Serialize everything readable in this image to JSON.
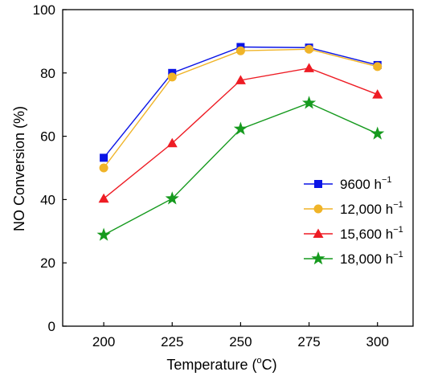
{
  "chart_data": {
    "type": "line",
    "xlabel": "Temperature (",
    "xlabel_unit_sup": "o",
    "xlabel_unit_tail": "C)",
    "ylabel": "NO Conversion (%)",
    "x": [
      200,
      225,
      250,
      275,
      300
    ],
    "x_tick_labels": [
      "200",
      "225",
      "250",
      "275",
      "300"
    ],
    "y_tick_labels": [
      "0",
      "20",
      "40",
      "60",
      "80",
      "100"
    ],
    "xlim": [
      185,
      313
    ],
    "ylim": [
      0,
      100
    ],
    "grid": false,
    "legend_position": "right",
    "series": [
      {
        "name": "9600 h",
        "name_sup": "−1",
        "color": "#0a14e6",
        "marker": "square",
        "values": [
          53.2,
          80.0,
          88.2,
          88.0,
          82.5
        ]
      },
      {
        "name": "12,000 h",
        "name_sup": "−1",
        "color": "#f0b428",
        "marker": "circle",
        "values": [
          50.0,
          78.7,
          87.0,
          87.5,
          82.0
        ]
      },
      {
        "name": "15,600 h",
        "name_sup": "−1",
        "color": "#ee1c24",
        "marker": "triangle",
        "values": [
          40.3,
          57.8,
          77.7,
          81.5,
          73.2
        ]
      },
      {
        "name": "18,000 h",
        "name_sup": "−1",
        "color": "#169a1e",
        "marker": "star",
        "values": [
          28.8,
          40.3,
          62.3,
          70.5,
          60.8
        ]
      }
    ]
  }
}
